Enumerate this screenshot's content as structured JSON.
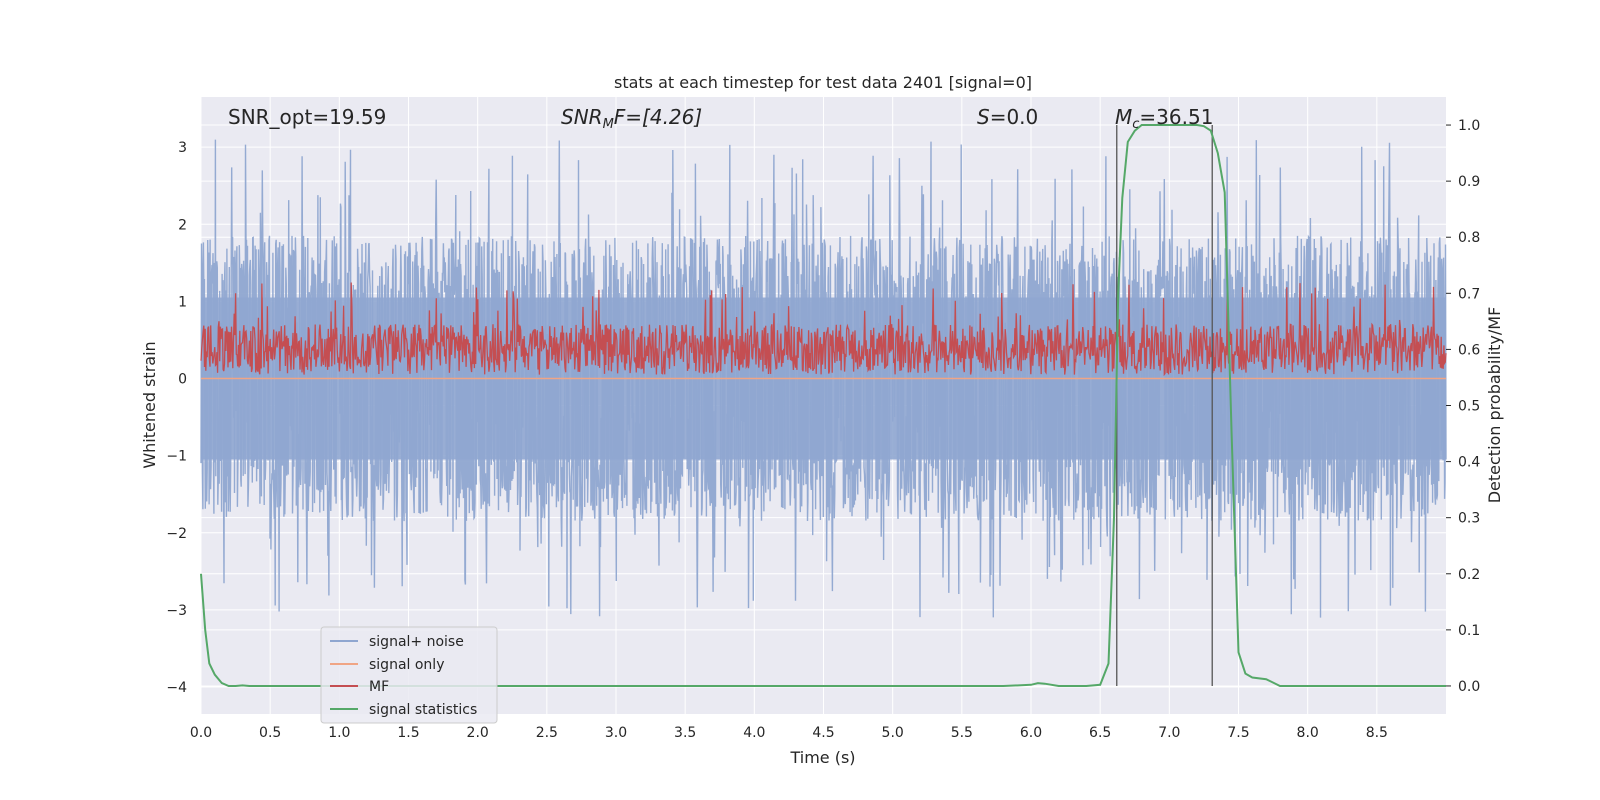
{
  "chart_data": {
    "type": "line",
    "title": "stats at each timestep for test data 2401 [signal=0]",
    "xlabel": "Time (s)",
    "ylabel": "Whitened strain",
    "y2label": "Detection probability/MF",
    "xlim": [
      0.0,
      9.0
    ],
    "ylim": [
      -4.35,
      3.65
    ],
    "y2lim": [
      -0.05,
      1.05
    ],
    "xticks": [
      "0.0",
      "0.5",
      "1.0",
      "1.5",
      "2.0",
      "2.5",
      "3.0",
      "3.5",
      "4.0",
      "4.5",
      "5.0",
      "5.5",
      "6.0",
      "6.5",
      "7.0",
      "7.5",
      "8.0",
      "8.5"
    ],
    "yticks": [
      "3",
      "2",
      "1",
      "0",
      "−1",
      "−2",
      "−3",
      "−4"
    ],
    "y2ticks": [
      "1.0",
      "0.9",
      "0.8",
      "0.7",
      "0.6",
      "0.5",
      "0.4",
      "0.3",
      "0.2",
      "0.1",
      "0.0"
    ],
    "annotations": {
      "snr_opt": "SNR_opt=19.59",
      "snr_mf_main": "SNR",
      "snr_mf_sub": "M",
      "snr_mf_rest": "F=[4.26]",
      "s_main": "S",
      "s_rest": "=0.0",
      "mc_main": "M",
      "mc_sub": "c",
      "mc_rest": "=36.51"
    },
    "vlines": [
      6.62,
      7.31
    ],
    "grid": true,
    "legend_position": "lower-left",
    "series": [
      {
        "name": "signal+ noise",
        "color": "#8fa6d0",
        "description": "whitened noisy strain, roughly symmetric about 0 with amplitude about 1.8 and spikes up to about 3"
      },
      {
        "name": "signal only",
        "color": "#f0a585",
        "value": 0.0
      },
      {
        "name": "MF",
        "color": "#c44e52",
        "axis": "right",
        "mean": 0.6,
        "amplitude_range": [
          0.55,
          0.7
        ]
      },
      {
        "name": "signal statistics",
        "color": "#55a868",
        "axis": "right",
        "x": [
          0.0,
          0.03,
          0.06,
          0.1,
          0.15,
          0.2,
          0.25,
          0.3,
          0.35,
          0.4,
          0.5,
          1.0,
          2.0,
          3.0,
          4.0,
          5.0,
          5.8,
          6.0,
          6.05,
          6.1,
          6.2,
          6.4,
          6.5,
          6.56,
          6.6,
          6.63,
          6.66,
          6.7,
          6.75,
          6.8,
          6.9,
          7.0,
          7.1,
          7.2,
          7.25,
          7.3,
          7.35,
          7.4,
          7.45,
          7.5,
          7.55,
          7.6,
          7.7,
          7.8,
          7.9,
          8.0,
          8.5,
          9.0
        ],
        "y": [
          0.2,
          0.1,
          0.04,
          0.02,
          0.005,
          0.0,
          0.0,
          0.001,
          0.0,
          0.0,
          0.0,
          0.0,
          0.0,
          0.0,
          0.0,
          0.0,
          0.0,
          0.002,
          0.005,
          0.004,
          0.0,
          0.0,
          0.002,
          0.04,
          0.3,
          0.7,
          0.87,
          0.97,
          0.99,
          1.0,
          1.0,
          1.0,
          1.0,
          1.0,
          0.998,
          0.99,
          0.95,
          0.88,
          0.45,
          0.06,
          0.022,
          0.015,
          0.012,
          0.0,
          0.0,
          0.0,
          0.0,
          0.0
        ]
      }
    ]
  }
}
